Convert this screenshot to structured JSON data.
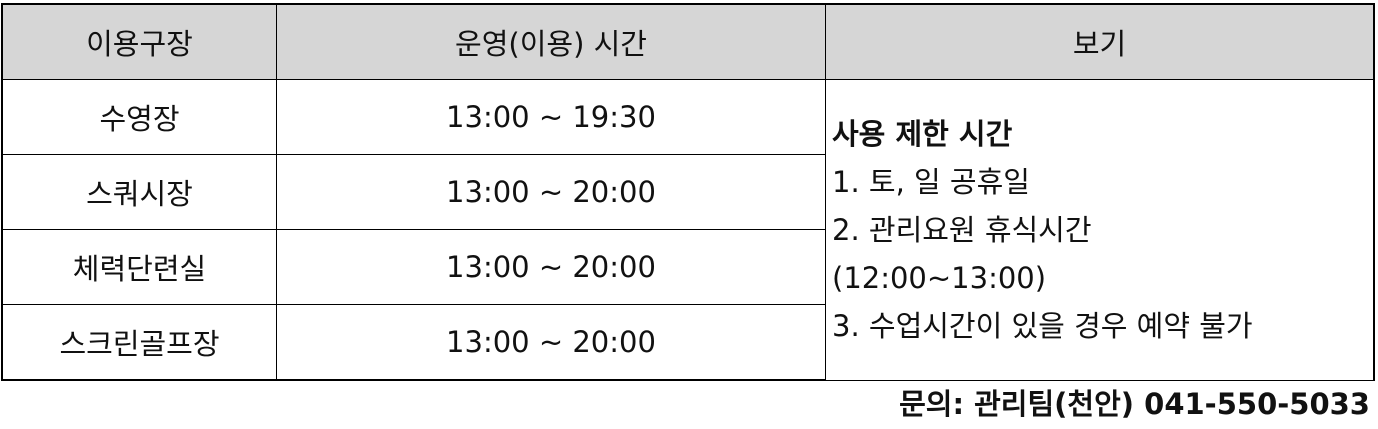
{
  "table": {
    "headers": {
      "facility": "이용구장",
      "hours": "운영(이용) 시간",
      "view": "보기"
    },
    "rows": [
      {
        "facility": "수영장",
        "hours": "13:00 ~ 19:30"
      },
      {
        "facility": "스쿼시장",
        "hours": "13:00 ~ 20:00"
      },
      {
        "facility": "체력단련실",
        "hours": "13:00 ~ 20:00"
      },
      {
        "facility": "스크린골프장",
        "hours": "13:00 ~ 20:00"
      }
    ],
    "notes": {
      "title": "사용 제한 시간",
      "lines": [
        "1. 토, 일 공휴일",
        "2. 관리요원 휴식시간",
        "(12:00~13:00)",
        "3. 수업시간이 있을 경우 예약 불가"
      ]
    }
  },
  "contact": "문의: 관리팀(천안) 041-550-5033",
  "colors": {
    "header_background": "#d6d6d6",
    "border": "#000000",
    "text": "#111111"
  }
}
